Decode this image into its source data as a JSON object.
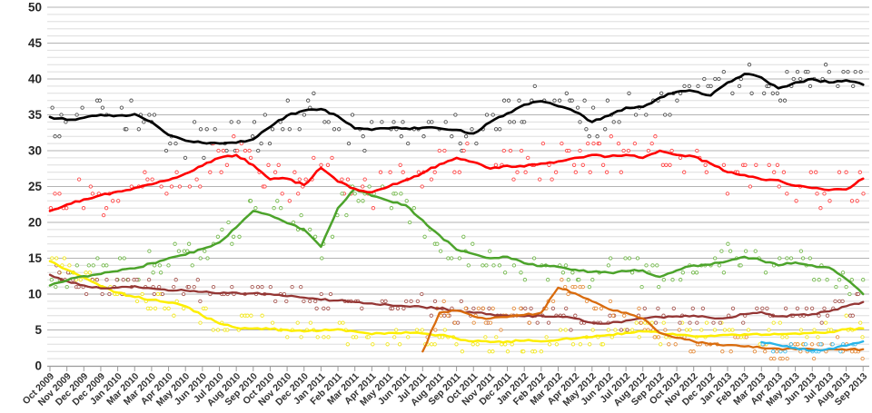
{
  "chart_data": {
    "type": "line",
    "title": "",
    "grid": "horizontal, minor every 1 unit, major every 5 units",
    "legend": "none visible",
    "ylim": [
      0,
      50
    ],
    "y_ticks": [
      0,
      5,
      10,
      15,
      20,
      25,
      30,
      35,
      40,
      45,
      50
    ],
    "categories": [
      "Oct 2009",
      "Nov 2009",
      "Dec 2009",
      "Dec 2009",
      "Jan 2010",
      "Mar 2010",
      "Mar 2010",
      "Apr 2010",
      "May 2010",
      "Jun 2010",
      "Jul 2010",
      "Aug 2010",
      "Sep 2010",
      "Oct 2010",
      "Nov 2010",
      "Dec 2010",
      "Jan 2011",
      "Feb 2011",
      "Mar 2011",
      "Apr 2011",
      "May 2011",
      "Jun 2011",
      "Jul 2011",
      "Aug 2011",
      "Sep 2011",
      "Oct 2011",
      "Nov 2011",
      "Dec 2011",
      "Jan 2012",
      "Feb 2012",
      "Mar 2012",
      "Apr 2012",
      "May 2012",
      "Jun 2012",
      "Jul 2012",
      "Aug 2012",
      "Sep 2012",
      "Oct 2012",
      "Nov 2012",
      "Dec 2012",
      "Jan 2013",
      "Feb 2013",
      "Mar 2013",
      "Apr 2013",
      "May 2013",
      "Jun 2013",
      "Jul 2013",
      "Aug 2013",
      "Sep 2013"
    ],
    "series": [
      {
        "name": "black-line",
        "color": "#000000",
        "scatter_color": "#333333",
        "line_width": 2.7,
        "jitter": 2.6,
        "values": [
          34.7,
          34.3,
          34.6,
          35.0,
          34.9,
          35.1,
          34.0,
          32.2,
          31.4,
          31.1,
          31.0,
          31.1,
          31.6,
          33.3,
          34.9,
          35.6,
          35.8,
          34.8,
          33.1,
          32.9,
          33.1,
          33.1,
          33.2,
          33.1,
          32.9,
          32.4,
          34.0,
          35.2,
          36.4,
          36.9,
          36.2,
          35.4,
          34.0,
          34.9,
          36.0,
          36.1,
          37.4,
          38.2,
          38.3,
          37.7,
          39.5,
          40.7,
          40.2,
          38.7,
          39.5,
          40.0,
          39.5,
          39.8,
          39.2
        ]
      },
      {
        "name": "red-line",
        "color": "#fe0000",
        "scatter_color": "#ff2a2a",
        "line_width": 2.6,
        "jitter": 2.6,
        "values": [
          21.6,
          22.5,
          23.2,
          23.8,
          24.3,
          24.8,
          25.3,
          25.9,
          26.8,
          27.9,
          29.0,
          29.4,
          28.0,
          26.0,
          26.1,
          25.2,
          27.6,
          25.7,
          24.7,
          24.2,
          25.0,
          25.9,
          26.9,
          28.1,
          29.0,
          28.4,
          27.5,
          27.9,
          27.8,
          28.2,
          28.5,
          29.0,
          29.4,
          29.2,
          29.4,
          29.0,
          30.0,
          29.4,
          29.2,
          28.2,
          27.0,
          26.6,
          26.0,
          25.9,
          25.1,
          24.8,
          24.5,
          24.6,
          26.1
        ]
      },
      {
        "name": "green-line",
        "color": "#4ca32b",
        "scatter_color": "#5fae33",
        "line_width": 2.5,
        "jitter": 2.0,
        "values": [
          11.2,
          11.9,
          12.5,
          12.8,
          13.2,
          13.6,
          14.3,
          15.0,
          15.5,
          16.3,
          17.2,
          19.3,
          21.6,
          21.0,
          19.9,
          19.0,
          16.6,
          22.0,
          24.7,
          23.7,
          23.0,
          22.4,
          20.3,
          18.2,
          16.2,
          15.6,
          15.0,
          15.2,
          14.3,
          13.9,
          13.8,
          13.4,
          13.1,
          13.0,
          13.2,
          13.3,
          12.4,
          13.3,
          14.0,
          14.1,
          14.6,
          15.2,
          14.7,
          14.0,
          14.4,
          14.0,
          13.7,
          12.1,
          10.0
        ]
      },
      {
        "name": "yellow-line",
        "color": "#fdee00",
        "scatter_color": "#f0e400",
        "line_width": 2.5,
        "jitter": 1.6,
        "values": [
          14.6,
          13.4,
          12.3,
          11.1,
          10.2,
          9.6,
          9.2,
          8.8,
          8.3,
          7.0,
          5.9,
          5.3,
          5.2,
          5.1,
          5.0,
          4.8,
          4.9,
          5.1,
          4.8,
          4.4,
          4.6,
          4.7,
          4.5,
          4.3,
          3.8,
          3.4,
          3.3,
          3.4,
          3.5,
          3.4,
          3.6,
          3.8,
          4.0,
          4.3,
          4.6,
          4.8,
          4.6,
          4.3,
          4.1,
          4.2,
          4.3,
          4.4,
          4.3,
          4.4,
          4.5,
          4.6,
          4.7,
          5.1,
          5.2
        ]
      },
      {
        "name": "dark-red-line",
        "color": "#943634",
        "scatter_color": "#9a4038",
        "line_width": 2.3,
        "jitter": 1.4,
        "values": [
          12.7,
          11.8,
          11.2,
          10.8,
          10.9,
          11.1,
          10.8,
          10.5,
          10.5,
          10.3,
          10.1,
          10.2,
          10.1,
          10.0,
          9.7,
          9.5,
          9.2,
          9.1,
          8.9,
          8.7,
          8.5,
          8.3,
          8.2,
          8.0,
          7.7,
          7.4,
          7.2,
          7.0,
          6.9,
          7.0,
          6.9,
          6.6,
          6.0,
          5.9,
          6.3,
          6.6,
          6.8,
          6.9,
          7.0,
          6.7,
          6.7,
          7.2,
          7.5,
          6.9,
          7.1,
          7.2,
          7.6,
          8.3,
          8.9
        ]
      },
      {
        "name": "orange-line",
        "color": "#d96b0d",
        "scatter_color": "#e07b20",
        "line_width": 2.3,
        "jitter": 1.5,
        "values": [
          null,
          null,
          null,
          null,
          null,
          null,
          null,
          null,
          null,
          null,
          null,
          null,
          null,
          null,
          null,
          null,
          null,
          null,
          null,
          null,
          null,
          null,
          2.0,
          7.4,
          7.7,
          6.9,
          6.6,
          6.8,
          7.1,
          7.4,
          10.9,
          10.1,
          9.0,
          7.9,
          7.4,
          6.6,
          4.6,
          3.9,
          3.4,
          3.0,
          2.9,
          2.7,
          2.5,
          2.4,
          2.3,
          2.3,
          2.3,
          2.2,
          2.3
        ]
      },
      {
        "name": "light-blue-line",
        "color": "#29b4e8",
        "scatter_color": "#2ab4e8",
        "line_width": 2.3,
        "jitter": 0.9,
        "values": [
          null,
          null,
          null,
          null,
          null,
          null,
          null,
          null,
          null,
          null,
          null,
          null,
          null,
          null,
          null,
          null,
          null,
          null,
          null,
          null,
          null,
          null,
          null,
          null,
          null,
          null,
          null,
          null,
          null,
          null,
          null,
          null,
          null,
          null,
          null,
          null,
          null,
          null,
          null,
          null,
          null,
          null,
          3.3,
          2.9,
          2.5,
          2.1,
          2.4,
          2.8,
          3.4
        ]
      }
    ],
    "scatter_style": "small open circles scattered around each trend line, aligned to integer values",
    "axis_colors": {
      "gridline_minor": "#dedede",
      "gridline_major": "#b3b3b3",
      "axis_line": "#9a9a9a",
      "tick_label": "#333333",
      "y_label": "#262626"
    }
  }
}
